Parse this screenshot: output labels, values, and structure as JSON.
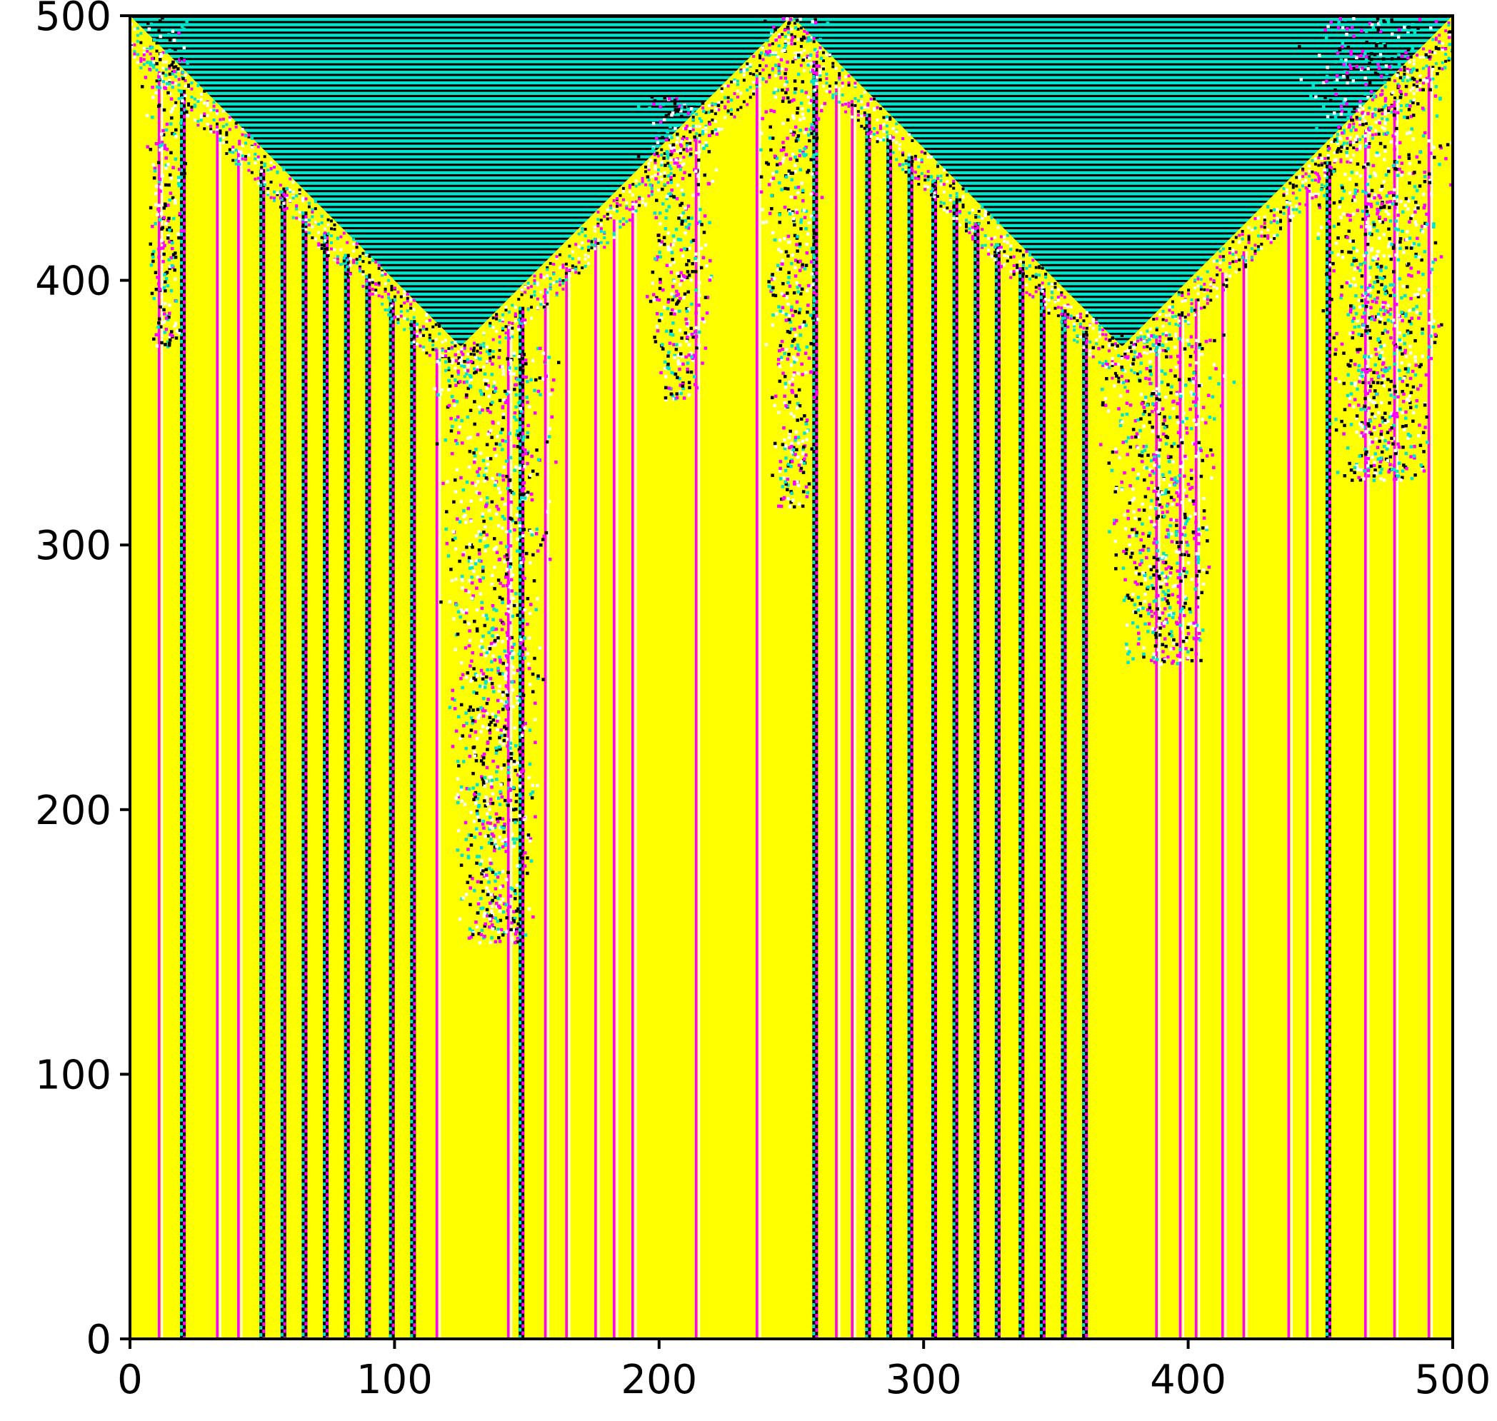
{
  "chart_data": {
    "type": "heatmap",
    "title": "",
    "xlabel": "",
    "ylabel": "",
    "xlim": [
      0,
      500
    ],
    "ylim": [
      0,
      500
    ],
    "xticks": [
      0,
      100,
      200,
      300,
      400,
      500
    ],
    "yticks": [
      0,
      100,
      200,
      300,
      400,
      500
    ],
    "x_tick_labels": [
      "0",
      "100",
      "200",
      "300",
      "400",
      "500"
    ],
    "y_tick_labels": [
      "0",
      "100",
      "200",
      "300",
      "400",
      "500"
    ],
    "grid": false,
    "colors": {
      "background": "#ffff00",
      "stripe_light": "#ff00ff",
      "stripe_dark": "#000000",
      "top_band_a": "#00e5cc",
      "top_band_b": "#000000",
      "chaos": [
        "#ff00ff",
        "#00e5cc",
        "#000000",
        "#ffffff"
      ]
    },
    "top_triangles": [
      {
        "x_from": 0,
        "x_peak": 250,
        "x_to": 500,
        "y_top": 500,
        "y_bottom": 375
      }
    ],
    "chaotic_regions": [
      {
        "x": [
          6,
          20
        ],
        "y": [
          375,
          500
        ]
      },
      {
        "x": [
          120,
          155
        ],
        "y": [
          150,
          375
        ]
      },
      {
        "x": [
          195,
          220
        ],
        "y": [
          355,
          470
        ]
      },
      {
        "x": [
          240,
          260
        ],
        "y": [
          315,
          500
        ]
      },
      {
        "x": [
          370,
          410
        ],
        "y": [
          255,
          380
        ]
      },
      {
        "x": [
          450,
          495
        ],
        "y": [
          325,
          500
        ]
      }
    ],
    "magenta_stripes_x": [
      11,
      33,
      41,
      116,
      143,
      157,
      165,
      176,
      183,
      190,
      214,
      237,
      267,
      273,
      388,
      397,
      403,
      413,
      421,
      438,
      445,
      467,
      478,
      491
    ],
    "dark_stripes_x": [
      20,
      50,
      58,
      66,
      74,
      82,
      90,
      99,
      107,
      148,
      259,
      279,
      287,
      295,
      304,
      312,
      320,
      328,
      337,
      345,
      353,
      361,
      453
    ]
  }
}
